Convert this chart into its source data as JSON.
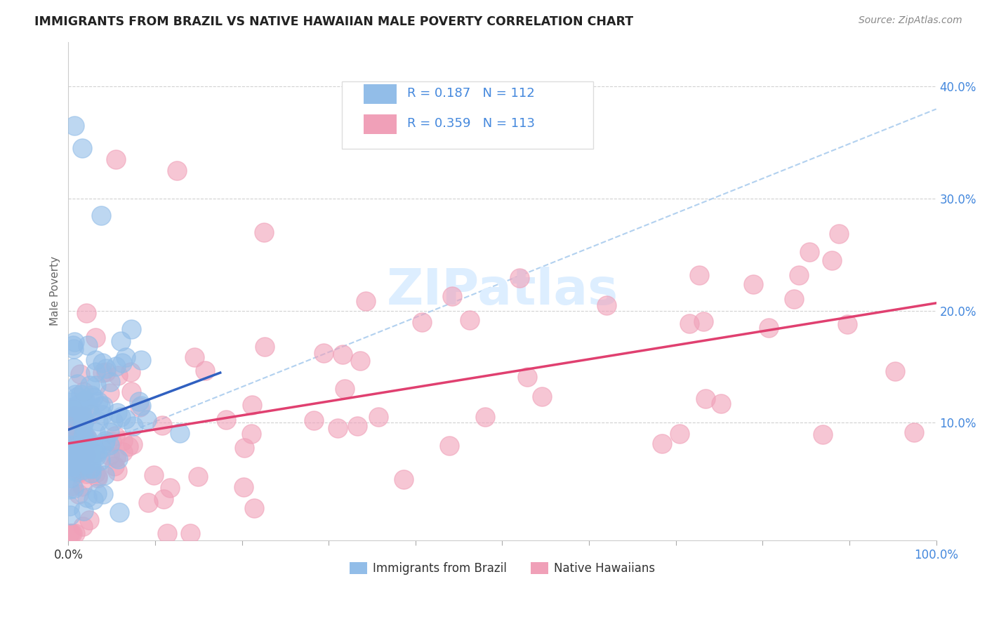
{
  "title": "IMMIGRANTS FROM BRAZIL VS NATIVE HAWAIIAN MALE POVERTY CORRELATION CHART",
  "source_text": "Source: ZipAtlas.com",
  "ylabel": "Male Poverty",
  "xlim": [
    0,
    1.0
  ],
  "ylim": [
    -0.005,
    0.44
  ],
  "ytick_vals": [
    0.1,
    0.2,
    0.3,
    0.4
  ],
  "ytick_labels": [
    "10.0%",
    "20.0%",
    "30.0%",
    "40.0%"
  ],
  "xtick_vals": [
    0.0,
    0.1,
    0.2,
    0.3,
    0.4,
    0.5,
    0.6,
    0.7,
    0.8,
    0.9,
    1.0
  ],
  "xtick_label_left": "0.0%",
  "xtick_label_right": "100.0%",
  "legend_r1": "R = 0.187",
  "legend_n1": "N = 112",
  "legend_r2": "R = 0.359",
  "legend_n2": "N = 113",
  "color_blue": "#92BDE8",
  "color_pink": "#F0A0B8",
  "color_blue_line": "#3060C0",
  "color_pink_line": "#E04070",
  "color_dashed_line": "#AACCEE",
  "color_title": "#222222",
  "color_source": "#888888",
  "color_ytick": "#4488DD",
  "color_xtick_edge": "#333333",
  "background_color": "#FFFFFF",
  "grid_color": "#CCCCCC",
  "watermark": "ZIPatlas",
  "watermark_color": "#DDEEFF",
  "brazil_seed": 12345,
  "hawaii_seed": 67890
}
